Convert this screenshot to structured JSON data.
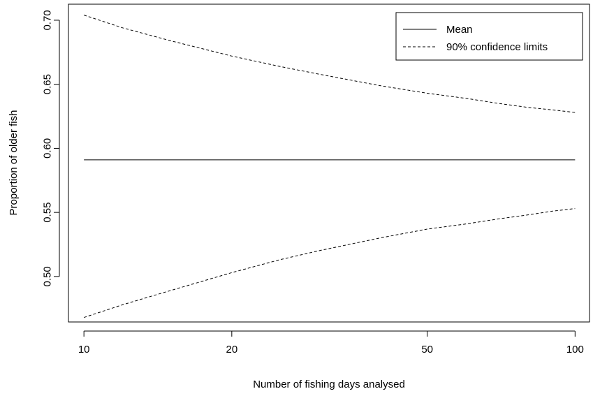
{
  "chart_data": {
    "type": "line",
    "title": "",
    "xlabel": "Number of fishing days analysed",
    "ylabel": "Proportion of older fish",
    "x_scale": "log",
    "xlim": [
      9.3,
      107
    ],
    "ylim": [
      0.4645,
      0.7125
    ],
    "x_ticks": [
      10,
      20,
      50,
      100
    ],
    "x_tick_labels": [
      "10",
      "20",
      "50",
      "100"
    ],
    "y_ticks": [
      0.5,
      0.55,
      0.6,
      0.65,
      0.7
    ],
    "y_tick_labels": [
      "0.50",
      "0.55",
      "0.60",
      "0.65",
      "0.70"
    ],
    "grid": false,
    "legend_position": "top-right",
    "series": [
      {
        "name": "Mean",
        "style": "solid",
        "x": [
          10,
          100
        ],
        "y": [
          0.591,
          0.591
        ]
      },
      {
        "name": "90% confidence limits",
        "style": "dashed",
        "x": [
          10,
          12,
          15,
          20,
          25,
          30,
          40,
          50,
          60,
          70,
          80,
          90,
          100
        ],
        "y": [
          0.704,
          0.694,
          0.684,
          0.672,
          0.664,
          0.658,
          0.649,
          0.643,
          0.639,
          0.635,
          0.632,
          0.63,
          0.628
        ]
      },
      {
        "name": "",
        "style": "dashed",
        "x": [
          10,
          12,
          15,
          20,
          25,
          30,
          40,
          50,
          60,
          70,
          80,
          90,
          100
        ],
        "y": [
          0.468,
          0.478,
          0.489,
          0.503,
          0.513,
          0.52,
          0.53,
          0.537,
          0.541,
          0.545,
          0.548,
          0.551,
          0.553
        ]
      }
    ],
    "legend": [
      {
        "label": "Mean",
        "style": "solid"
      },
      {
        "label": "90% confidence limits",
        "style": "dashed"
      }
    ]
  }
}
